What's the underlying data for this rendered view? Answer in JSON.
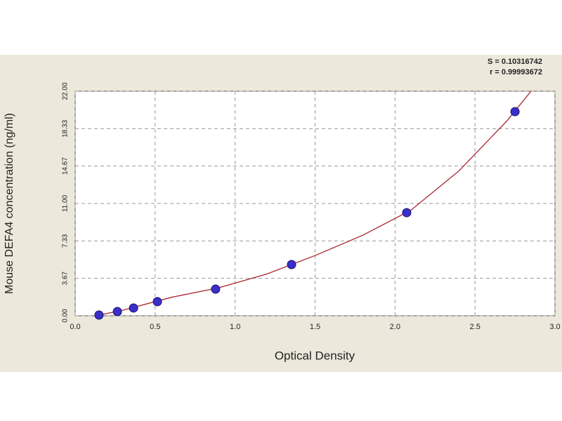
{
  "chart_data": {
    "type": "scatter",
    "x_label": "Optical Density",
    "y_label": "Mouse DEFA4 concentration (ng/ml)",
    "annotations": [
      "S = 0.10316742",
      "r = 0.99993672"
    ],
    "x": [
      0.149,
      0.264,
      0.365,
      0.514,
      0.878,
      1.353,
      2.073,
      2.75
    ],
    "values": [
      0.07,
      0.41,
      0.76,
      1.38,
      2.61,
      5.02,
      10.1,
      20.0
    ],
    "color": "#3a2fc8",
    "curve": {
      "x": [
        0.13,
        0.3,
        0.6,
        0.9,
        1.2,
        1.5,
        1.8,
        2.1,
        2.4,
        2.7,
        2.85
      ],
      "y": [
        0,
        0.55,
        1.8,
        2.75,
        4.1,
        5.9,
        7.9,
        10.35,
        14.2,
        19.1,
        22
      ],
      "color": "#a8242c"
    },
    "xlim": [
      0,
      3
    ],
    "xticks": [
      {
        "value": 0,
        "label": "0.0"
      },
      0.5,
      {
        "value": 1,
        "label": "1.0"
      },
      1.5,
      {
        "value": 2,
        "label": "2.0"
      },
      2.5,
      {
        "value": 3,
        "label": "3.0"
      }
    ],
    "ylim": [
      0,
      22
    ],
    "yticks": [
      {
        "value": 0,
        "label": "0.00"
      },
      3.67,
      7.33,
      {
        "value": 11,
        "label": "11.00"
      },
      14.67,
      18.33,
      {
        "value": 22,
        "label": "22.00"
      }
    ],
    "grid": true
  }
}
